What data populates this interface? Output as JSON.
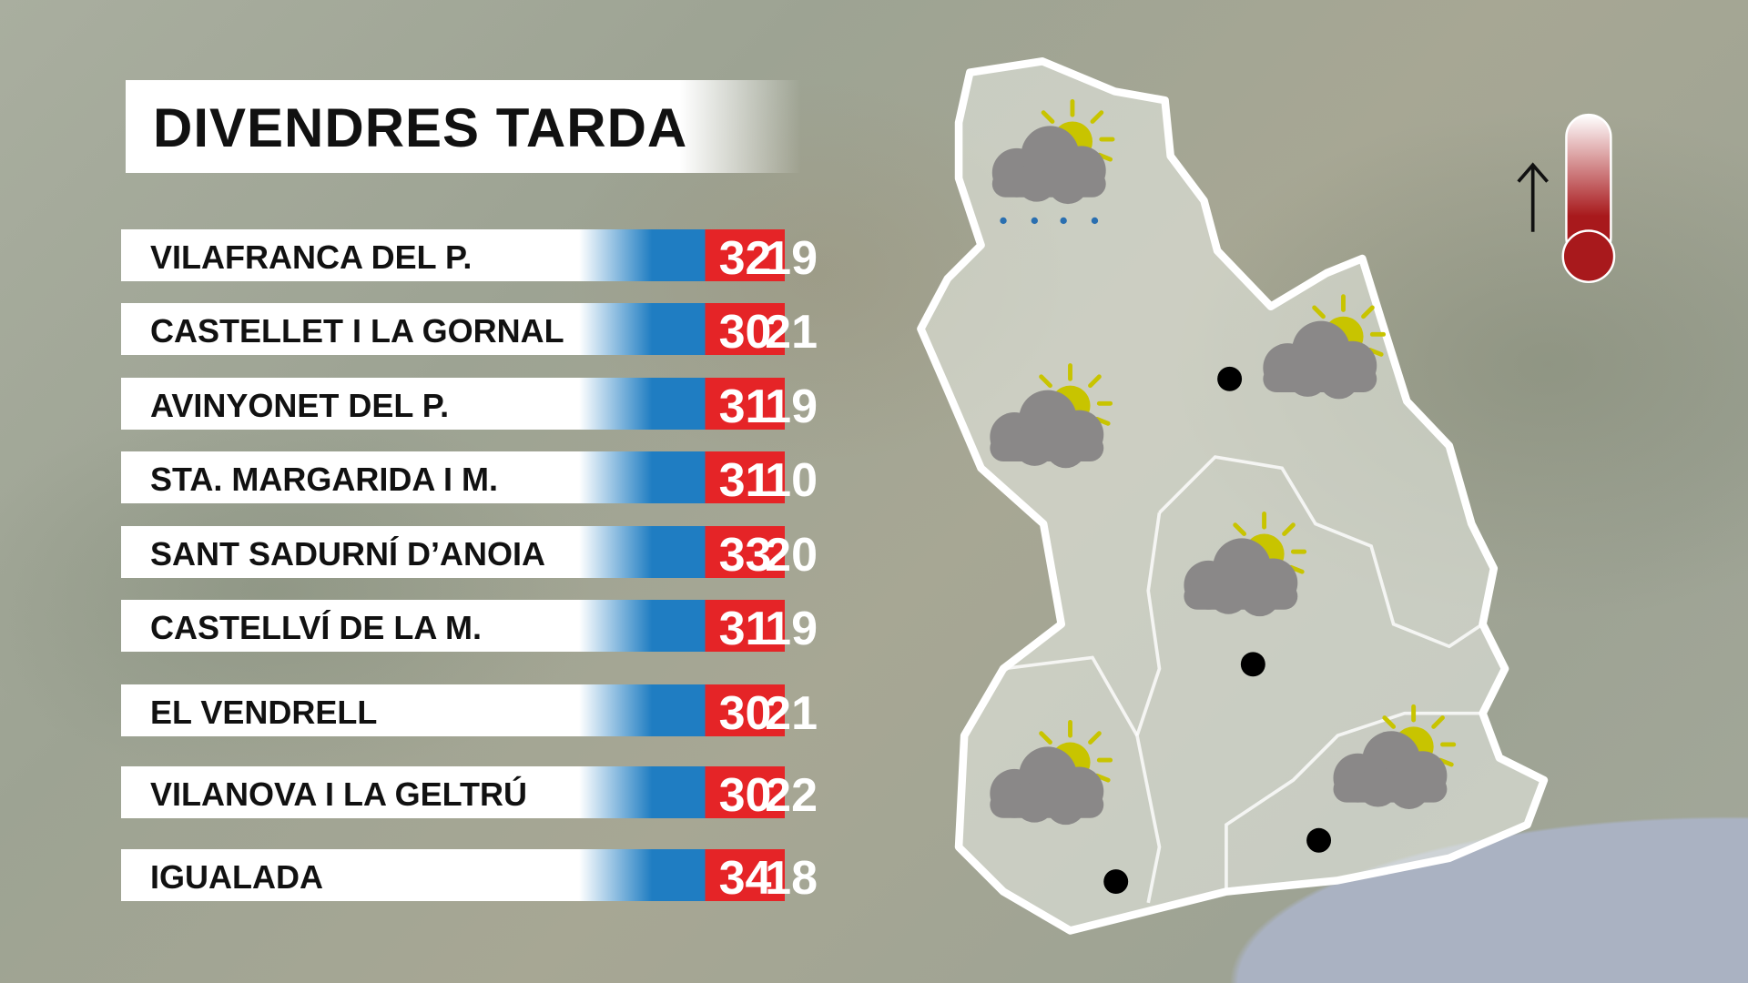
{
  "title": "DIVENDRES TARDA",
  "colors": {
    "min": "#1f7dc2",
    "max": "#e52427",
    "sun": "#c8c400",
    "cloud": "#8a8888",
    "thermometer": "#a8191c"
  },
  "rows": [
    {
      "name": "VILAFRANCA DEL P.",
      "min": "19",
      "max": "32"
    },
    {
      "name": "CASTELLET I LA GORNAL",
      "min": "21",
      "max": "30"
    },
    {
      "name": "AVINYONET DEL P.",
      "min": "19",
      "max": "31"
    },
    {
      "name": "STA. MARGARIDA I M.",
      "min": "10",
      "max": "31"
    },
    {
      "name": "SANT SADURNÍ D’ANOIA",
      "min": "20",
      "max": "33"
    },
    {
      "name": "CASTELLVÍ DE LA M.",
      "min": "19",
      "max": "31"
    },
    {
      "name": "EL VENDRELL",
      "min": "21",
      "max": "30"
    },
    {
      "name": "VILANOVA I LA GELTRÚ",
      "min": "22",
      "max": "30"
    },
    {
      "name": "IGUALADA",
      "min": "18",
      "max": "34"
    }
  ],
  "map_icons": [
    "sun-cloud-rain-icon",
    "sun-cloud-icon",
    "sun-cloud-icon",
    "sun-cloud-icon",
    "sun-cloud-icon",
    "sun-cloud-icon"
  ],
  "legend_icons": [
    "arrow-up-icon",
    "thermometer-icon"
  ]
}
